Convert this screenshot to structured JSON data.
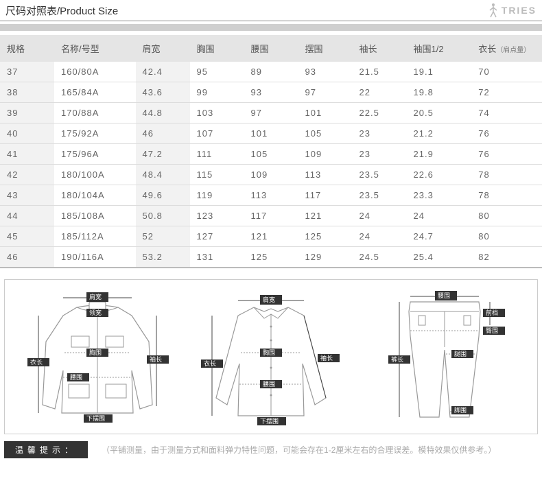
{
  "title": "尺码对照表/Product Size",
  "brand": "TRIES",
  "columns": [
    "规格",
    "名称/号型",
    "肩宽",
    "胸围",
    "腰围",
    "摆围",
    "袖长",
    "袖围1/2",
    "衣长"
  ],
  "col_sub": [
    "",
    "",
    "",
    "",
    "",
    "",
    "",
    "",
    "（肩点量）"
  ],
  "col_widths_pct": [
    10,
    15,
    10,
    10,
    10,
    10,
    10,
    12,
    13
  ],
  "rows": [
    [
      "37",
      "160/80A",
      "42.4",
      "95",
      "89",
      "93",
      "21.5",
      "19.1",
      "70"
    ],
    [
      "38",
      "165/84A",
      "43.6",
      "99",
      "93",
      "97",
      "22",
      "19.8",
      "72"
    ],
    [
      "39",
      "170/88A",
      "44.8",
      "103",
      "97",
      "101",
      "22.5",
      "20.5",
      "74"
    ],
    [
      "40",
      "175/92A",
      "46",
      "107",
      "101",
      "105",
      "23",
      "21.2",
      "76"
    ],
    [
      "41",
      "175/96A",
      "47.2",
      "111",
      "105",
      "109",
      "23",
      "21.9",
      "76"
    ],
    [
      "42",
      "180/100A",
      "48.4",
      "115",
      "109",
      "113",
      "23.5",
      "22.6",
      "78"
    ],
    [
      "43",
      "180/104A",
      "49.6",
      "119",
      "113",
      "117",
      "23.5",
      "23.3",
      "78"
    ],
    [
      "44",
      "185/108A",
      "50.8",
      "123",
      "117",
      "121",
      "24",
      "24",
      "80"
    ],
    [
      "45",
      "185/112A",
      "52",
      "127",
      "121",
      "125",
      "24",
      "24.7",
      "80"
    ],
    [
      "46",
      "190/116A",
      "53.2",
      "131",
      "125",
      "129",
      "24.5",
      "25.4",
      "82"
    ]
  ],
  "diagram_labels": {
    "jacket": {
      "肩宽": "肩宽",
      "领宽": "领宽",
      "胸围": "胸围",
      "袖长": "袖长",
      "衣长": "衣长",
      "腰围": "腰围",
      "下摆围": "下摆围"
    },
    "shirt": {
      "肩宽": "肩宽",
      "胸围": "胸围",
      "袖长": "袖长",
      "衣长": "衣长",
      "腰围": "腰围",
      "下摆围": "下摆围"
    },
    "pants": {
      "腰围": "腰围",
      "前档": "前档",
      "臀围": "臀围",
      "腿围": "腿围",
      "裤长": "裤长",
      "脚围": "脚围"
    }
  },
  "footer_label": "温馨提示：",
  "footer_text": "（平铺测量，由于测量方式和面料弹力特性问题，可能会存在1-2厘米左右的合理误差。模特效果仅供参考。）",
  "colors": {
    "header_bg": "#e5e5e5",
    "stripe_bg": "#f2f2f2",
    "border": "#dddddd",
    "bar": "#cfcfcf",
    "text": "#555555",
    "footer_label_bg": "#333333"
  }
}
